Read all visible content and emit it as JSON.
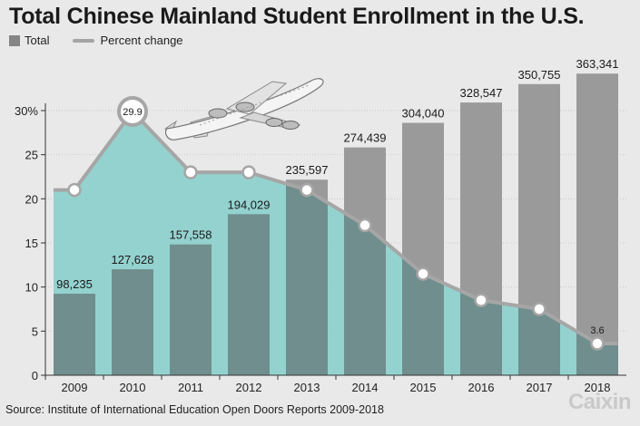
{
  "title": "Total Chinese Mainland Student Enrollment in the U.S.",
  "legend": {
    "bar_label": "Total",
    "line_label": "Percent change"
  },
  "source": "Source: Institute of International Education Open Doors Reports 2009-2018",
  "brand": "Caixin",
  "colors": {
    "bar": "#9a9a9a",
    "bar_overlap": "#6f8e8d",
    "area": "#8ccfcc",
    "line": "#a6a6a6",
    "point": "#ffffff"
  },
  "chart_data": {
    "type": "bar",
    "categories": [
      "2009",
      "2010",
      "2011",
      "2012",
      "2013",
      "2014",
      "2015",
      "2016",
      "2017",
      "2018"
    ],
    "series": [
      {
        "name": "Total",
        "type": "bar",
        "values": [
          98235,
          127628,
          157558,
          194029,
          235597,
          274439,
          304040,
          328547,
          350755,
          363341
        ]
      },
      {
        "name": "Percent change",
        "type": "area",
        "values": [
          21.0,
          29.9,
          23.0,
          23.0,
          21.0,
          17.0,
          11.5,
          8.5,
          7.5,
          3.6
        ]
      }
    ],
    "bar_labels": [
      "98,235",
      "127,628",
      "157,558",
      "194,029",
      "235,597",
      "274,439",
      "304,040",
      "328,547",
      "350,755",
      "363,341"
    ],
    "pct_labels": {
      "1": "29.9",
      "9": "3.6"
    },
    "y_ticks": [
      "0",
      "5",
      "10",
      "15",
      "20",
      "25",
      "30%"
    ],
    "ylim": [
      0,
      30
    ]
  }
}
